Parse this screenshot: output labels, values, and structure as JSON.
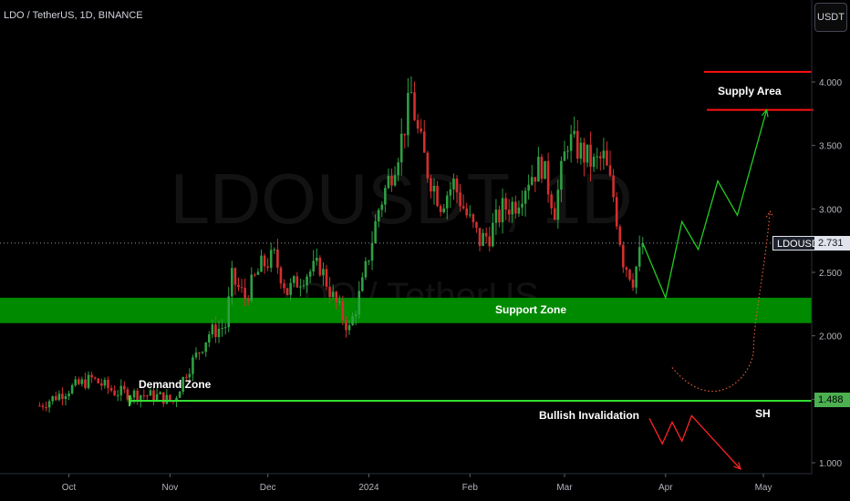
{
  "header": {
    "title": "LDO / TetherUS, 1D, BINANCE",
    "currency": "USDT"
  },
  "watermark": {
    "symbol": "LDOUSDT, 1D",
    "name": "LDO / TetherUS"
  },
  "price_tags": {
    "symbol": "LDOUSDT",
    "last": "2.731",
    "invalidation": "1.488"
  },
  "annotations": {
    "supply": "Supply Area",
    "support": "Support Zone",
    "demand": "Demand Zone",
    "invalidation": "Bullish Invalidation",
    "sh": "SH"
  },
  "colors": {
    "up": "#2ea043",
    "down": "#d32f2f",
    "support_zone": "#008a00",
    "supply_line": "#ff1111",
    "invalidation_line": "#33dd33",
    "projection_up": "#22cc22",
    "projection_down": "#ff2222",
    "projection_dotted": "#e05a3a"
  },
  "chart_data": {
    "type": "candlestick",
    "title": "LDO / TetherUS, 1D, BINANCE",
    "y_axis": {
      "ticks": [
        "1.000",
        "1.500",
        "2.000",
        "2.500",
        "3.000",
        "3.500",
        "4.000"
      ],
      "range": [
        0.85,
        4.3
      ]
    },
    "x_axis": {
      "ticks": [
        "Oct",
        "Nov",
        "Dec",
        "2024",
        "Feb",
        "Mar",
        "Apr",
        "May"
      ]
    },
    "last_price": 2.731,
    "levels": {
      "supply_area": [
        3.78,
        4.08
      ],
      "support_zone": [
        2.1,
        2.3
      ],
      "bullish_invalidation": 1.488
    },
    "price_path": [
      [
        "2023-09-22",
        1.45
      ],
      [
        "2023-10-01",
        1.58
      ],
      [
        "2023-10-08",
        1.66
      ],
      [
        "2023-10-15",
        1.56
      ],
      [
        "2023-10-22",
        1.54
      ],
      [
        "2023-10-29",
        1.52
      ],
      [
        "2023-11-02",
        1.48
      ],
      [
        "2023-11-06",
        1.72
      ],
      [
        "2023-11-09",
        1.84
      ],
      [
        "2023-11-13",
        2.02
      ],
      [
        "2023-11-18",
        2.08
      ],
      [
        "2023-11-20",
        2.45
      ],
      [
        "2023-11-24",
        2.3
      ],
      [
        "2023-11-29",
        2.55
      ],
      [
        "2023-12-03",
        2.62
      ],
      [
        "2023-12-07",
        2.35
      ],
      [
        "2023-12-12",
        2.48
      ],
      [
        "2023-12-17",
        2.55
      ],
      [
        "2023-12-21",
        2.3
      ],
      [
        "2023-12-26",
        2.05
      ],
      [
        "2023-12-30",
        2.4
      ],
      [
        "2024-01-04",
        3.0
      ],
      [
        "2024-01-08",
        3.3
      ],
      [
        "2024-01-11",
        3.55
      ],
      [
        "2024-01-14",
        3.9
      ],
      [
        "2024-01-16",
        3.6
      ],
      [
        "2024-01-19",
        3.3
      ],
      [
        "2024-01-23",
        3.05
      ],
      [
        "2024-01-27",
        3.2
      ],
      [
        "2024-01-31",
        2.95
      ],
      [
        "2024-02-04",
        2.75
      ],
      [
        "2024-02-07",
        2.8
      ],
      [
        "2024-02-11",
        3.0
      ],
      [
        "2024-02-15",
        3.05
      ],
      [
        "2024-02-19",
        3.25
      ],
      [
        "2024-02-23",
        3.35
      ],
      [
        "2024-02-27",
        3.0
      ],
      [
        "2024-03-02",
        3.55
      ],
      [
        "2024-03-06",
        3.45
      ],
      [
        "2024-03-10",
        3.35
      ],
      [
        "2024-03-13",
        3.4
      ],
      [
        "2024-03-16",
        3.1
      ],
      [
        "2024-03-19",
        2.6
      ],
      [
        "2024-03-22",
        2.45
      ],
      [
        "2024-03-25",
        2.73
      ]
    ],
    "projection_bullish": [
      [
        "2024-03-25",
        2.73
      ],
      [
        "2024-04-01",
        2.3
      ],
      [
        "2024-04-06",
        2.9
      ],
      [
        "2024-04-11",
        2.68
      ],
      [
        "2024-04-17",
        3.22
      ],
      [
        "2024-04-23",
        2.95
      ],
      [
        "2024-05-02",
        3.78
      ]
    ],
    "projection_bearish": [
      [
        "2024-03-27",
        1.35
      ],
      [
        "2024-03-31",
        1.15
      ],
      [
        "2024-04-03",
        1.32
      ],
      [
        "2024-04-06",
        1.17
      ],
      [
        "2024-04-09",
        1.37
      ],
      [
        "2024-04-24",
        0.95
      ]
    ],
    "projection_alternative": [
      [
        "2024-04-03",
        1.75
      ],
      [
        "2024-04-16",
        1.55
      ],
      [
        "2024-04-28",
        1.9
      ],
      [
        "2024-05-03",
        2.98
      ]
    ]
  }
}
